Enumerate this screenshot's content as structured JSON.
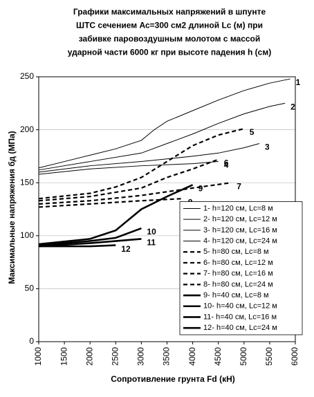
{
  "chart_data": {
    "type": "line",
    "title": [
      "Графики максимальных напряжений в шпунте",
      "ШТС сечением Ас=300 см2  длиной Lc (м) при",
      "забивке паровоздушным молотом с массой",
      "ударной части 6000 кг при высоте падения h (см)"
    ],
    "x_label": "Сопротивление грунта Fd (кН)",
    "y_label": "Максимальные напряжения бд  (МПа)",
    "xlim": [
      1000,
      6000
    ],
    "xticks": [
      1000,
      1500,
      2000,
      2500,
      3000,
      3500,
      4000,
      4500,
      5000,
      5500,
      6000
    ],
    "ylim": [
      0,
      250
    ],
    "yticks": [
      0,
      50,
      100,
      150,
      200,
      250
    ],
    "grid": true,
    "legend": "lower right",
    "series": [
      {
        "name": "1- h=120 см, Lc=8 м",
        "label": "1",
        "style": "solid",
        "color": "#000000",
        "x": [
          1000,
          1500,
          2000,
          2500,
          3000,
          3250,
          3500,
          4000,
          4500,
          5000,
          5500,
          5900
        ],
        "values": [
          164,
          170,
          176,
          182,
          190,
          200,
          208,
          218,
          228,
          237,
          244,
          248
        ]
      },
      {
        "name": "2- h=120 см, Lc=12 м",
        "label": "2",
        "style": "solid",
        "color": "#000000",
        "x": [
          1000,
          2000,
          3000,
          3500,
          4000,
          4500,
          5000,
          5500,
          5800
        ],
        "values": [
          162,
          170,
          178,
          187,
          196,
          206,
          215,
          222,
          225
        ]
      },
      {
        "name": "3- h=120 см, Lc=16 м",
        "label": "3",
        "style": "solid",
        "color": "#000000",
        "x": [
          1000,
          2000,
          3000,
          4000,
          4500,
          5000,
          5300
        ],
        "values": [
          160,
          166,
          170,
          175,
          178,
          183,
          187
        ]
      },
      {
        "name": "4- h=120 см, Lc=24 м",
        "label": "4",
        "style": "solid",
        "color": "#000000",
        "x": [
          1000,
          2000,
          3000,
          4000,
          4500
        ],
        "values": [
          158,
          163,
          166,
          168,
          170
        ]
      },
      {
        "name": "5- h=80 см, Lc=8 м",
        "label": "5",
        "style": "dashed",
        "color": "#000000",
        "x": [
          1000,
          2000,
          2500,
          3000,
          3500,
          4000,
          4500,
          5000
        ],
        "values": [
          135,
          140,
          146,
          155,
          170,
          185,
          195,
          201
        ]
      },
      {
        "name": "6- h=80 см, Lc=12 м",
        "label": "6",
        "style": "dashed",
        "color": "#000000",
        "x": [
          1000,
          2000,
          3000,
          3500,
          4000,
          4500
        ],
        "values": [
          133,
          137,
          145,
          155,
          163,
          172
        ]
      },
      {
        "name": "7- h=80 см, Lc=16 м",
        "label": "7",
        "style": "dashed",
        "color": "#000000",
        "x": [
          1000,
          2000,
          3000,
          4000,
          4750
        ],
        "values": [
          130,
          133,
          138,
          145,
          150
        ]
      },
      {
        "name": "8- h=80 см, Lc=24 м",
        "label": "8",
        "style": "dashed",
        "color": "#000000",
        "x": [
          1000,
          2000,
          3000,
          3800
        ],
        "values": [
          127,
          130,
          133,
          135
        ]
      },
      {
        "name": "9- h=40 см, Lc=8 м",
        "label": "9",
        "style": "thick",
        "color": "#000000",
        "x": [
          1000,
          2000,
          2500,
          3000,
          3500,
          4000
        ],
        "values": [
          92,
          97,
          105,
          125,
          137,
          148
        ]
      },
      {
        "name": "10- h=40 см, Lc=12 м",
        "label": "10",
        "style": "thick",
        "color": "#000000",
        "x": [
          1000,
          2000,
          2500,
          3000
        ],
        "values": [
          91,
          95,
          98,
          107
        ]
      },
      {
        "name": "11- h=40 см, Lc=16 м",
        "label": "11",
        "style": "thick",
        "color": "#000000",
        "x": [
          1000,
          2000,
          3000
        ],
        "values": [
          90,
          93,
          97
        ]
      },
      {
        "name": "12- h=40 см, Lc=24 м",
        "label": "12",
        "style": "thick",
        "color": "#000000",
        "x": [
          1000,
          2000,
          2500
        ],
        "values": [
          90,
          90,
          91
        ]
      }
    ]
  }
}
